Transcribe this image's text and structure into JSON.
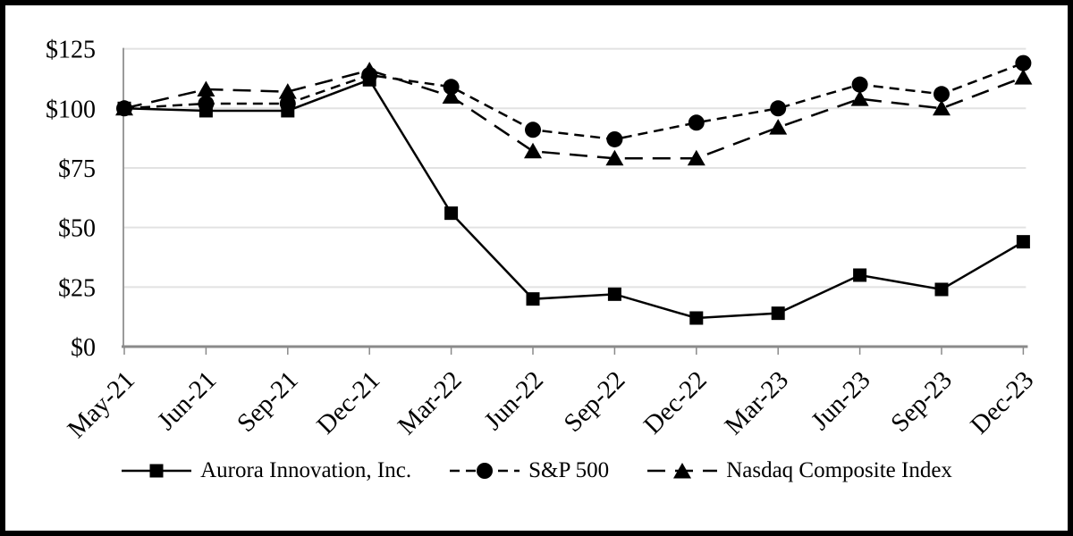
{
  "chart_data": {
    "type": "line",
    "title": "",
    "x_axis": {
      "categories": [
        "May-21",
        "Jun-21",
        "Sep-21",
        "Dec-21",
        "Mar-22",
        "Jun-22",
        "Sep-22",
        "Dec-22",
        "Mar-23",
        "Jun-23",
        "Sep-23",
        "Dec-23"
      ]
    },
    "y_axis": {
      "range": [
        0,
        125
      ],
      "ticks": [
        {
          "label": "$0",
          "value": 0
        },
        {
          "label": "$25",
          "value": 25
        },
        {
          "label": "$50",
          "value": 50
        },
        {
          "label": "$75",
          "value": 75
        },
        {
          "label": "$100",
          "value": 100
        },
        {
          "label": "$125",
          "value": 125
        }
      ]
    },
    "series": [
      {
        "name": "Aurora Innovation, Inc.",
        "slug": "aurora",
        "marker": "square",
        "line_style": "solid",
        "color": "#000000",
        "values": [
          100,
          99,
          99,
          112,
          56,
          20,
          22,
          12,
          14,
          30,
          24,
          44
        ]
      },
      {
        "name": "S&P 500",
        "slug": "sp500",
        "marker": "circle",
        "line_style": "dashed",
        "color": "#000000",
        "values": [
          100,
          102,
          102,
          114,
          109,
          91,
          87,
          94,
          100,
          110,
          106,
          119
        ]
      },
      {
        "name": "Nasdaq Composite Index",
        "slug": "nasdaq",
        "marker": "triangle",
        "line_style": "long-dash",
        "color": "#000000",
        "values": [
          100,
          108,
          107,
          116,
          105,
          82,
          79,
          79,
          92,
          104,
          100,
          113
        ]
      }
    ],
    "grid": true,
    "legend_position": "bottom",
    "colors": {
      "background": "#ffffff",
      "frame_border": "#000000",
      "gridline": "#e2e2e2",
      "x_axis": "#8a8a8a",
      "y_axis": "#9a9a9a",
      "text": "#000000"
    }
  }
}
